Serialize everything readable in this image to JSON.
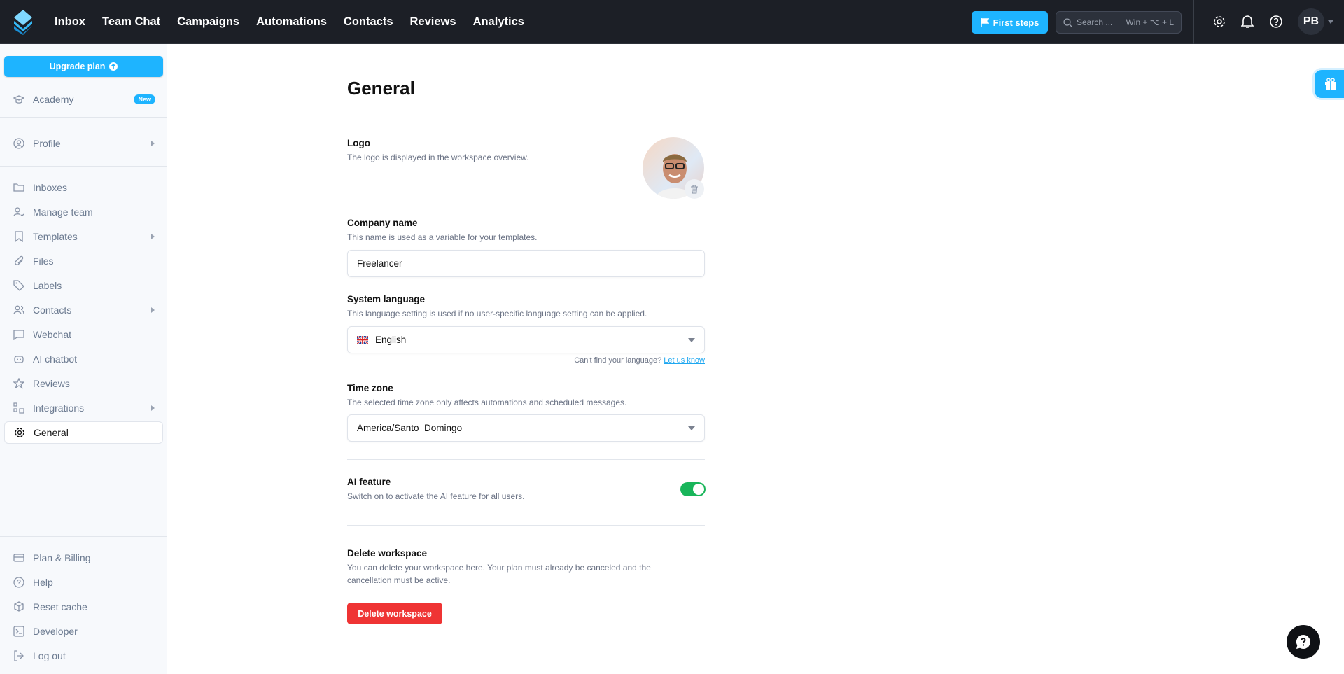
{
  "header": {
    "nav": [
      "Inbox",
      "Team Chat",
      "Campaigns",
      "Automations",
      "Contacts",
      "Reviews",
      "Analytics"
    ],
    "first_steps": "First steps",
    "search_placeholder": "Search ...",
    "search_shortcut": "Win + ⌥ + L",
    "avatar_initials": "PB"
  },
  "sidebar": {
    "upgrade": "Upgrade plan",
    "academy": "Academy",
    "academy_badge": "New",
    "profile": "Profile",
    "items": [
      "Inboxes",
      "Manage team",
      "Templates",
      "Files",
      "Labels",
      "Contacts",
      "Webchat",
      "AI chatbot",
      "Reviews",
      "Integrations",
      "General"
    ],
    "bottom": [
      "Plan & Billing",
      "Help",
      "Reset cache",
      "Developer",
      "Log out"
    ]
  },
  "main": {
    "title": "General",
    "logo": {
      "label": "Logo",
      "desc": "The logo is displayed in the workspace overview."
    },
    "company": {
      "label": "Company name",
      "desc": "This name is used as a variable for your templates.",
      "value": "Freelancer"
    },
    "language": {
      "label": "System language",
      "desc": "This language setting is used if no user-specific language setting can be applied.",
      "value": "English",
      "help": "Can't find your language?",
      "help_link": "Let us know"
    },
    "timezone": {
      "label": "Time zone",
      "desc": "The selected time zone only affects automations and scheduled messages.",
      "value": "America/Santo_Domingo"
    },
    "ai": {
      "label": "AI feature",
      "desc": "Switch on to activate the AI feature for all users.",
      "enabled": true
    },
    "delete": {
      "label": "Delete workspace",
      "desc1": "You can delete your workspace here. Your plan must already be canceled and the",
      "desc2": "cancellation must be active.",
      "button": "Delete workspace"
    }
  },
  "colors": {
    "accent": "#1eb4ff",
    "danger": "#ef3434",
    "toggle_on": "#19b55a",
    "header_bg": "#1c1f26"
  }
}
